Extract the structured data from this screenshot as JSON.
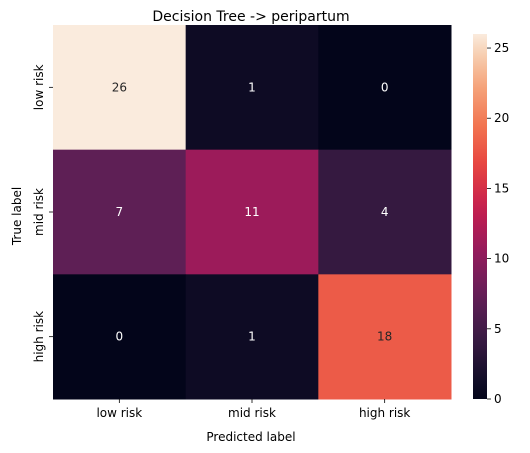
{
  "chart_data": {
    "type": "heatmap",
    "title": "Decision Tree -> peripartum",
    "xlabel": "Predicted label",
    "ylabel": "True label",
    "x_categories": [
      "low risk",
      "mid risk",
      "high risk"
    ],
    "y_categories": [
      "low risk",
      "mid risk",
      "high risk"
    ],
    "values": [
      [
        26,
        1,
        0
      ],
      [
        7,
        11,
        4
      ],
      [
        0,
        1,
        18
      ]
    ],
    "value_range": [
      0,
      26
    ],
    "colormap": "rocket",
    "colorbar": {
      "ticks": [
        0,
        5,
        10,
        15,
        20,
        25
      ]
    },
    "grid": false,
    "legend": "colorbar-right"
  }
}
